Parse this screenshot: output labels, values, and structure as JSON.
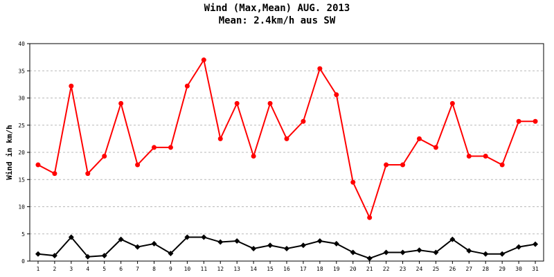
{
  "chart_data": {
    "type": "line",
    "title": "Wind (Max,Mean) AUG. 2013",
    "subtitle": "Mean: 2.4km/h aus SW",
    "xlabel": "",
    "ylabel": "Wind in km/h",
    "ylim": [
      0,
      40
    ],
    "yticks": [
      0,
      5,
      10,
      15,
      20,
      25,
      30,
      35,
      40
    ],
    "grid": "horizontal-dashed",
    "categories": [
      "1",
      "2",
      "3",
      "4",
      "5",
      "6",
      "7",
      "8",
      "9",
      "10",
      "11",
      "12",
      "13",
      "14",
      "15",
      "16",
      "17",
      "18",
      "19",
      "20",
      "21",
      "22",
      "23",
      "24",
      "25",
      "26",
      "27",
      "28",
      "29",
      "30",
      "31"
    ],
    "series": [
      {
        "color": "#ff0000",
        "marker": "circle",
        "values": [
          17.7,
          16.1,
          32.2,
          16.1,
          19.3,
          29.0,
          17.7,
          20.9,
          20.9,
          32.2,
          37.0,
          22.5,
          29.0,
          19.3,
          29.0,
          22.5,
          25.7,
          35.4,
          30.6,
          14.5,
          8.0,
          17.7,
          17.7,
          22.5,
          20.9,
          29.0,
          19.3,
          19.3,
          17.7,
          25.7,
          25.7
        ]
      },
      {
        "color": "#000000",
        "marker": "diamond",
        "values": [
          1.3,
          1.0,
          4.4,
          0.8,
          1.0,
          4.0,
          2.6,
          3.2,
          1.4,
          4.4,
          4.4,
          3.5,
          3.7,
          2.3,
          2.9,
          2.3,
          2.9,
          3.7,
          3.2,
          1.6,
          0.5,
          1.6,
          1.6,
          2.0,
          1.6,
          4.0,
          1.9,
          1.3,
          1.3,
          2.6,
          3.1
        ]
      }
    ]
  }
}
